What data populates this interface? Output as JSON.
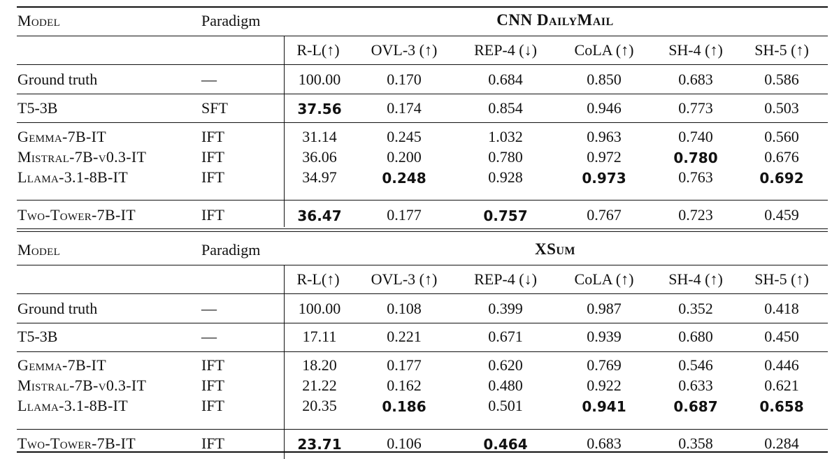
{
  "header": {
    "model": "Model",
    "paradigm": "Paradigm"
  },
  "columns": [
    "R-L(↑)",
    "OVL-3 (↑)",
    "REP-4 (↓)",
    "CoLA (↑)",
    "SH-4 (↑)",
    "SH-5 (↑)"
  ],
  "sections": [
    {
      "dataset": "CNN DailyMail",
      "rows": [
        {
          "model": "Ground truth",
          "plain": true,
          "paradigm": "—",
          "values": [
            "100.00",
            "0.170",
            "0.684",
            "0.850",
            "0.683",
            "0.586"
          ],
          "bold": []
        },
        {
          "model": "T5-3B",
          "plain": true,
          "paradigm": "SFT",
          "values": [
            "37.56",
            "0.174",
            "0.854",
            "0.946",
            "0.773",
            "0.503"
          ],
          "bold": [
            0
          ]
        },
        {
          "model": "Gemma-7B-IT",
          "plain": false,
          "paradigm": "IFT",
          "values": [
            "31.14",
            "0.245",
            "1.032",
            "0.963",
            "0.740",
            "0.560"
          ],
          "bold": []
        },
        {
          "model": "Mistral-7B-v0.3-IT",
          "plain": false,
          "paradigm": "IFT",
          "values": [
            "36.06",
            "0.200",
            "0.780",
            "0.972",
            "0.780",
            "0.676"
          ],
          "bold": [
            4
          ]
        },
        {
          "model": "Llama-3.1-8B-IT",
          "plain": false,
          "paradigm": "IFT",
          "values": [
            "34.97",
            "0.248",
            "0.928",
            "0.973",
            "0.763",
            "0.692"
          ],
          "bold": [
            1,
            3,
            5
          ]
        },
        {
          "model": "Two-Tower-7B-IT",
          "plain": false,
          "paradigm": "IFT",
          "values": [
            "36.47",
            "0.177",
            "0.757",
            "0.767",
            "0.723",
            "0.459"
          ],
          "bold": [
            0,
            2
          ]
        }
      ]
    },
    {
      "dataset": "XSum",
      "rows": [
        {
          "model": "Ground truth",
          "plain": true,
          "paradigm": "—",
          "values": [
            "100.00",
            "0.108",
            "0.399",
            "0.987",
            "0.352",
            "0.418"
          ],
          "bold": []
        },
        {
          "model": "T5-3B",
          "plain": true,
          "paradigm": "—",
          "values": [
            "17.11",
            "0.221",
            "0.671",
            "0.939",
            "0.680",
            "0.450"
          ],
          "bold": []
        },
        {
          "model": "Gemma-7B-IT",
          "plain": false,
          "paradigm": "IFT",
          "values": [
            "18.20",
            "0.177",
            "0.620",
            "0.769",
            "0.546",
            "0.446"
          ],
          "bold": []
        },
        {
          "model": "Mistral-7B-v0.3-IT",
          "plain": false,
          "paradigm": "IFT",
          "values": [
            "21.22",
            "0.162",
            "0.480",
            "0.922",
            "0.633",
            "0.621"
          ],
          "bold": []
        },
        {
          "model": "Llama-3.1-8B-IT",
          "plain": false,
          "paradigm": "IFT",
          "values": [
            "20.35",
            "0.186",
            "0.501",
            "0.941",
            "0.687",
            "0.658"
          ],
          "bold": [
            1,
            3,
            4,
            5
          ]
        },
        {
          "model": "Two-Tower-7B-IT",
          "plain": false,
          "paradigm": "IFT",
          "values": [
            "23.71",
            "0.106",
            "0.464",
            "0.683",
            "0.358",
            "0.284"
          ],
          "bold": [
            0,
            2
          ]
        }
      ]
    }
  ]
}
